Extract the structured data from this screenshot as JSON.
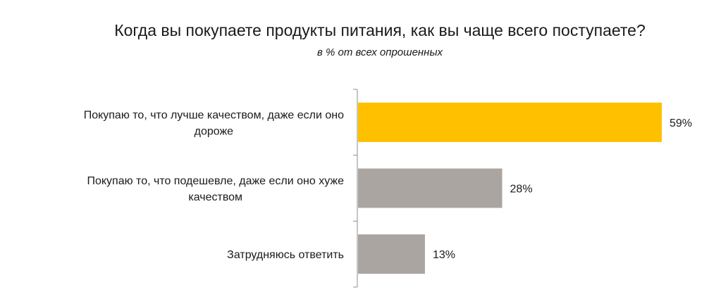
{
  "chart_data": {
    "type": "bar",
    "orientation": "horizontal",
    "title": "Когда вы покупаете продукты питания, как вы чаще всего поступаете?",
    "subtitle": "в % от всех опрошенных",
    "categories": [
      [
        "Покупаю то, что лучше качеством, даже если оно",
        "дороже"
      ],
      [
        "Покупаю то, что подешевле, даже если оно хуже",
        "качеством"
      ],
      [
        "Затрудняюсь ответить"
      ]
    ],
    "values": [
      59,
      28,
      13
    ],
    "value_labels": [
      "59%",
      "28%",
      "13%"
    ],
    "unit": "%",
    "colors": [
      "#FFC000",
      "#ABA5A2",
      "#ABA5A2"
    ],
    "xlim": [
      0,
      60
    ],
    "grid": false,
    "legend": "none"
  }
}
